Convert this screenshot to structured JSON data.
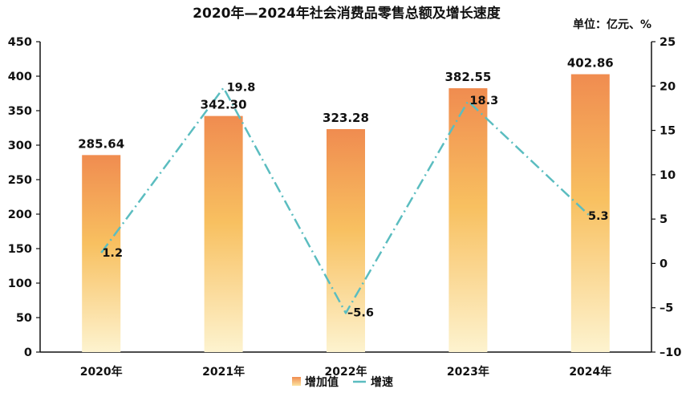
{
  "chart_data": {
    "type": "bar",
    "title": "2020年—2024年社会消费品零售总额及增长速度",
    "unit": "单位：亿元、%",
    "categories": [
      "2020年",
      "2021年",
      "2022年",
      "2023年",
      "2024年"
    ],
    "series": [
      {
        "name": "增加值",
        "type": "bar",
        "axis": "left",
        "values": [
          285.64,
          342.3,
          323.28,
          382.55,
          402.86
        ],
        "labels": [
          "285.64",
          "342.30",
          "323.28",
          "382.55",
          "402.86"
        ]
      },
      {
        "name": "增速",
        "type": "line",
        "axis": "right",
        "values": [
          1.2,
          19.8,
          -5.6,
          18.3,
          5.3
        ],
        "labels": [
          "1.2",
          "19.8",
          "–5.6",
          "18.3",
          "5.3"
        ]
      }
    ],
    "y_left": {
      "min": 0,
      "max": 450,
      "step": 50,
      "ticks": [
        "0",
        "50",
        "100",
        "150",
        "200",
        "250",
        "300",
        "350",
        "400",
        "450"
      ]
    },
    "y_right": {
      "min": -10,
      "max": 25,
      "step": 5,
      "ticks": [
        "–10",
        "–5",
        "0",
        "5",
        "10",
        "15",
        "20",
        "25"
      ]
    },
    "grid": false,
    "legend_position": "bottom",
    "colors": {
      "bar_top": "#f08c50",
      "bar_mid": "#f8c060",
      "bar_bottom": "#fdf3cf",
      "line": "#5bbdc0",
      "axis": "#111111"
    }
  }
}
